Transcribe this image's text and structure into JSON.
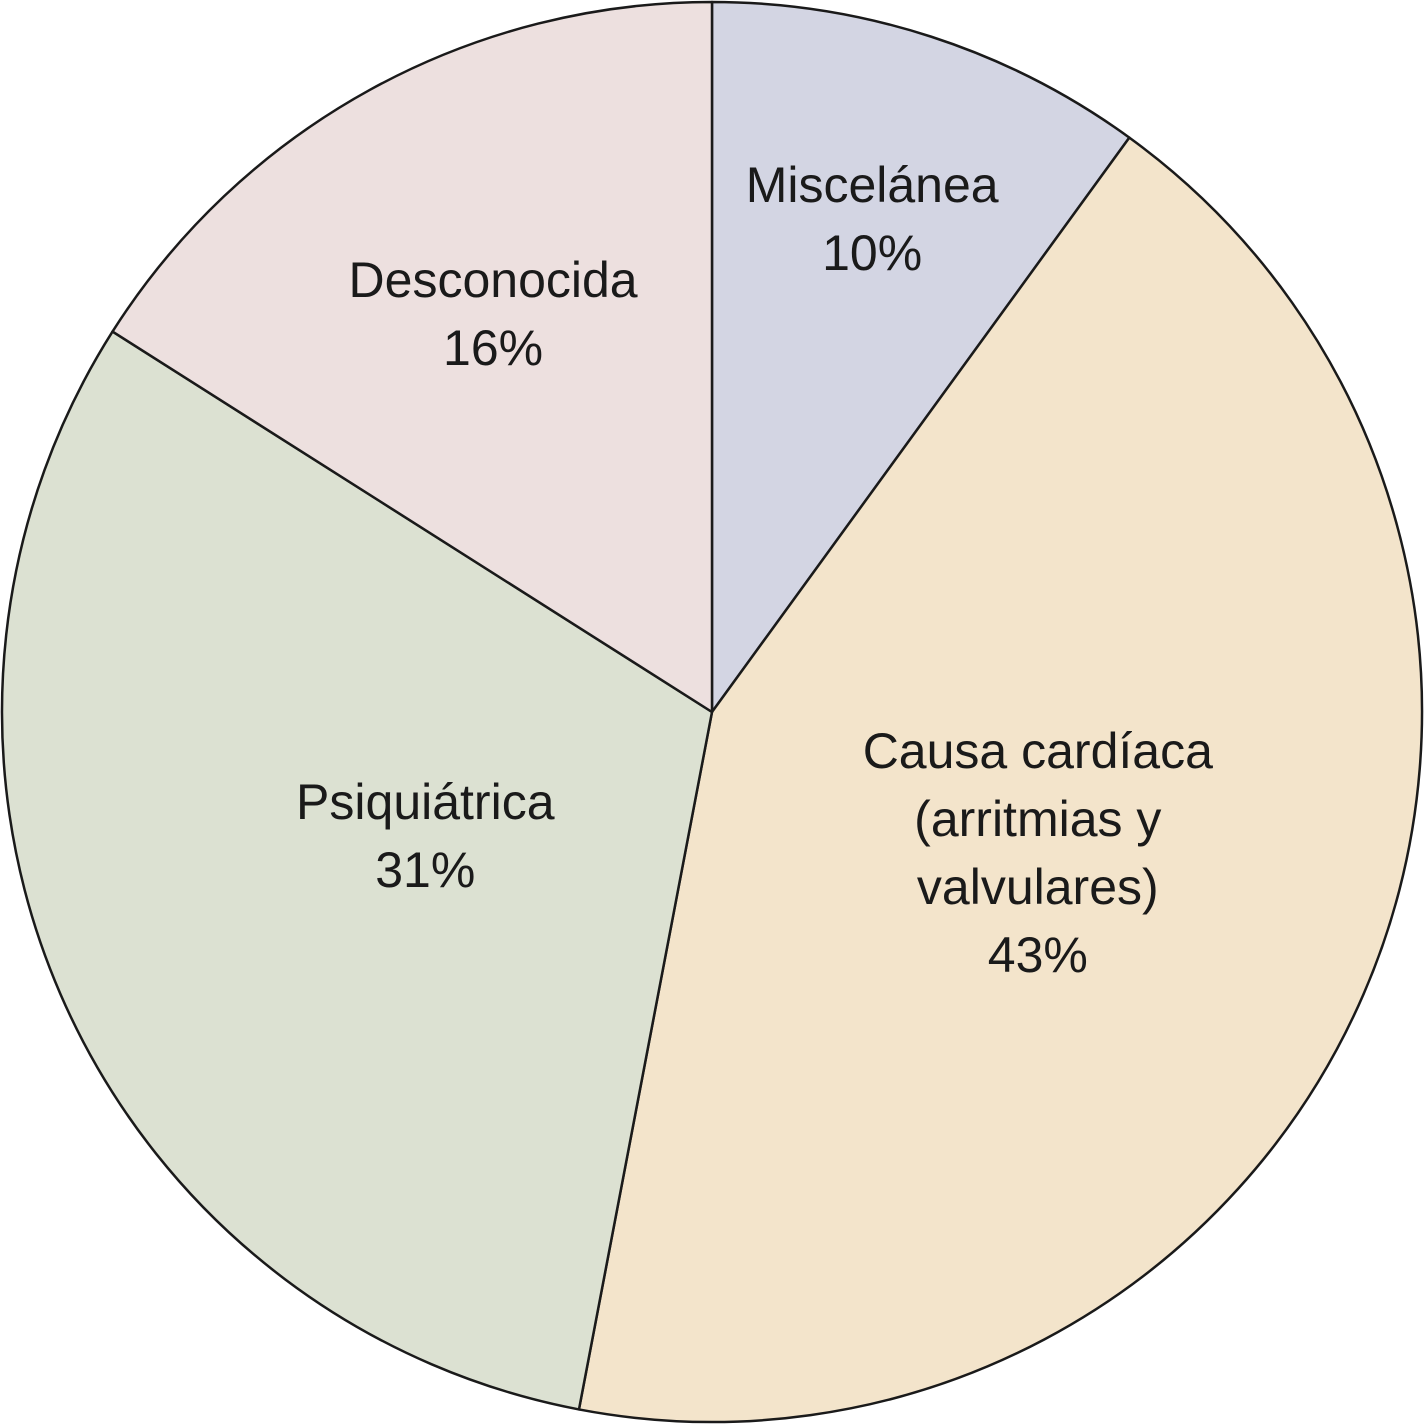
{
  "chart_data": {
    "type": "pie",
    "categories": [
      "Miscelánea",
      "Causa cardíaca\n(arritmias y valvulares)",
      "Psiquiátrica",
      "Desconocida"
    ],
    "values": [
      10,
      43,
      31,
      16
    ],
    "value_labels": [
      "10%",
      "43%",
      "31%",
      "16%"
    ],
    "colors": [
      "#d3d5e3",
      "#f3e4cb",
      "#dce1d2",
      "#ede0df"
    ],
    "start_angle": 0,
    "direction": "clockwise"
  }
}
